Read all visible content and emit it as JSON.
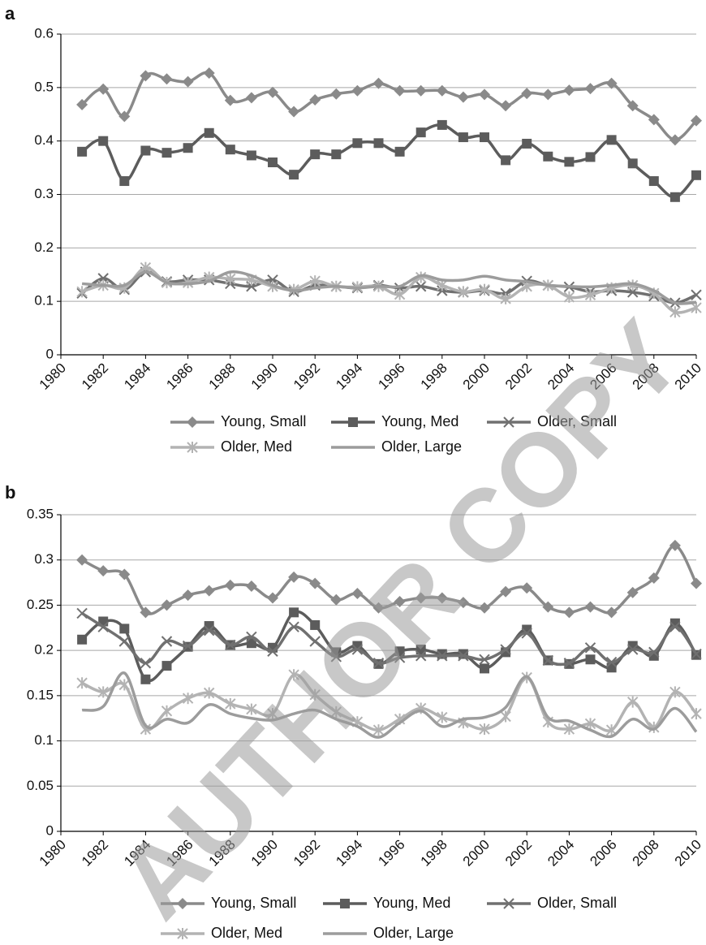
{
  "watermark": "AUTHOR COPY",
  "chart_data": [
    {
      "type": "line",
      "panel": "a",
      "x": [
        1981,
        1982,
        1983,
        1984,
        1985,
        1986,
        1987,
        1988,
        1989,
        1990,
        1991,
        1992,
        1993,
        1994,
        1995,
        1996,
        1997,
        1998,
        1999,
        2000,
        2001,
        2002,
        2003,
        2004,
        2005,
        2006,
        2007,
        2008,
        2009,
        2010
      ],
      "xlim": [
        1980,
        2010
      ],
      "xticks": [
        1980,
        1982,
        1984,
        1986,
        1988,
        1990,
        1992,
        1994,
        1996,
        1998,
        2000,
        2002,
        2004,
        2006,
        2008,
        2010
      ],
      "ylim": [
        0,
        0.6
      ],
      "yticks": [
        0,
        0.1,
        0.2,
        0.3,
        0.4,
        0.5,
        0.6
      ],
      "grid": true,
      "series": [
        {
          "name": "Young, Small",
          "color": "#8a8a8a",
          "marker": "diamond",
          "values": [
            0.468,
            0.497,
            0.446,
            0.522,
            0.516,
            0.511,
            0.527,
            0.476,
            0.481,
            0.491,
            0.455,
            0.477,
            0.488,
            0.494,
            0.508,
            0.494,
            0.494,
            0.494,
            0.482,
            0.487,
            0.466,
            0.489,
            0.487,
            0.495,
            0.498,
            0.508,
            0.466,
            0.44,
            0.402,
            0.438
          ]
        },
        {
          "name": "Young, Med",
          "color": "#5c5c5c",
          "marker": "square",
          "values": [
            0.38,
            0.4,
            0.325,
            0.382,
            0.378,
            0.387,
            0.415,
            0.384,
            0.373,
            0.36,
            0.337,
            0.375,
            0.375,
            0.396,
            0.396,
            0.38,
            0.416,
            0.43,
            0.407,
            0.407,
            0.364,
            0.395,
            0.371,
            0.361,
            0.37,
            0.402,
            0.358,
            0.325,
            0.295,
            0.336
          ]
        },
        {
          "name": "Older, Small",
          "color": "#707070",
          "marker": "x",
          "values": [
            0.115,
            0.143,
            0.122,
            0.155,
            0.137,
            0.14,
            0.14,
            0.133,
            0.128,
            0.14,
            0.118,
            0.13,
            0.128,
            0.125,
            0.13,
            0.125,
            0.128,
            0.12,
            0.117,
            0.12,
            0.115,
            0.138,
            0.13,
            0.127,
            0.118,
            0.12,
            0.117,
            0.11,
            0.097,
            0.112
          ]
        },
        {
          "name": "Older, Med",
          "color": "#b3b3b3",
          "marker": "star",
          "values": [
            0.118,
            0.13,
            0.125,
            0.163,
            0.135,
            0.135,
            0.145,
            0.142,
            0.14,
            0.128,
            0.122,
            0.138,
            0.128,
            0.127,
            0.128,
            0.113,
            0.145,
            0.13,
            0.118,
            0.122,
            0.105,
            0.128,
            0.13,
            0.108,
            0.112,
            0.125,
            0.13,
            0.115,
            0.08,
            0.088
          ]
        },
        {
          "name": "Older, Large",
          "color": "#9c9c9c",
          "marker": "none",
          "values": [
            0.133,
            0.13,
            0.13,
            0.155,
            0.135,
            0.133,
            0.138,
            0.155,
            0.148,
            0.13,
            0.12,
            0.125,
            0.128,
            0.125,
            0.128,
            0.128,
            0.148,
            0.14,
            0.14,
            0.147,
            0.14,
            0.137,
            0.13,
            0.128,
            0.127,
            0.13,
            0.133,
            0.12,
            0.097,
            0.098
          ]
        }
      ]
    },
    {
      "type": "line",
      "panel": "b",
      "x": [
        1981,
        1982,
        1983,
        1984,
        1985,
        1986,
        1987,
        1988,
        1989,
        1990,
        1991,
        1992,
        1993,
        1994,
        1995,
        1996,
        1997,
        1998,
        1999,
        2000,
        2001,
        2002,
        2003,
        2004,
        2005,
        2006,
        2007,
        2008,
        2009,
        2010
      ],
      "xlim": [
        1980,
        2010
      ],
      "xticks": [
        1980,
        1982,
        1984,
        1986,
        1988,
        1990,
        1992,
        1994,
        1996,
        1998,
        2000,
        2002,
        2004,
        2006,
        2008,
        2010
      ],
      "ylim": [
        0,
        0.35
      ],
      "yticks": [
        0,
        0.05,
        0.1,
        0.15,
        0.2,
        0.25,
        0.3,
        0.35
      ],
      "grid": true,
      "series": [
        {
          "name": "Young, Small",
          "color": "#8a8a8a",
          "marker": "diamond",
          "values": [
            0.3,
            0.288,
            0.284,
            0.242,
            0.25,
            0.261,
            0.266,
            0.272,
            0.271,
            0.258,
            0.281,
            0.274,
            0.256,
            0.263,
            0.247,
            0.254,
            0.258,
            0.258,
            0.253,
            0.247,
            0.265,
            0.269,
            0.248,
            0.242,
            0.248,
            0.242,
            0.264,
            0.28,
            0.316,
            0.274
          ]
        },
        {
          "name": "Young, Med",
          "color": "#5c5c5c",
          "marker": "square",
          "values": [
            0.212,
            0.232,
            0.224,
            0.168,
            0.183,
            0.204,
            0.227,
            0.206,
            0.208,
            0.203,
            0.242,
            0.228,
            0.198,
            0.205,
            0.185,
            0.199,
            0.201,
            0.196,
            0.196,
            0.18,
            0.198,
            0.223,
            0.189,
            0.185,
            0.19,
            0.181,
            0.205,
            0.194,
            0.23,
            0.195
          ]
        },
        {
          "name": "Older, Small",
          "color": "#707070",
          "marker": "x",
          "values": [
            0.241,
            0.226,
            0.21,
            0.186,
            0.21,
            0.205,
            0.222,
            0.206,
            0.215,
            0.199,
            0.226,
            0.21,
            0.193,
            0.201,
            0.186,
            0.192,
            0.194,
            0.194,
            0.194,
            0.19,
            0.201,
            0.219,
            0.189,
            0.186,
            0.203,
            0.187,
            0.201,
            0.198,
            0.226,
            0.196
          ]
        },
        {
          "name": "Older, Med",
          "color": "#b3b3b3",
          "marker": "star",
          "values": [
            0.164,
            0.154,
            0.162,
            0.113,
            0.133,
            0.147,
            0.153,
            0.141,
            0.135,
            0.13,
            0.173,
            0.151,
            0.132,
            0.121,
            0.112,
            0.124,
            0.136,
            0.126,
            0.12,
            0.113,
            0.127,
            0.17,
            0.121,
            0.113,
            0.119,
            0.112,
            0.143,
            0.115,
            0.154,
            0.13
          ]
        },
        {
          "name": "Older, Large",
          "color": "#9c9c9c",
          "marker": "none",
          "values": [
            0.134,
            0.138,
            0.175,
            0.117,
            0.124,
            0.12,
            0.14,
            0.13,
            0.125,
            0.123,
            0.13,
            0.134,
            0.124,
            0.116,
            0.104,
            0.12,
            0.133,
            0.116,
            0.124,
            0.126,
            0.137,
            0.171,
            0.126,
            0.122,
            0.112,
            0.105,
            0.124,
            0.113,
            0.136,
            0.11
          ]
        }
      ]
    }
  ]
}
